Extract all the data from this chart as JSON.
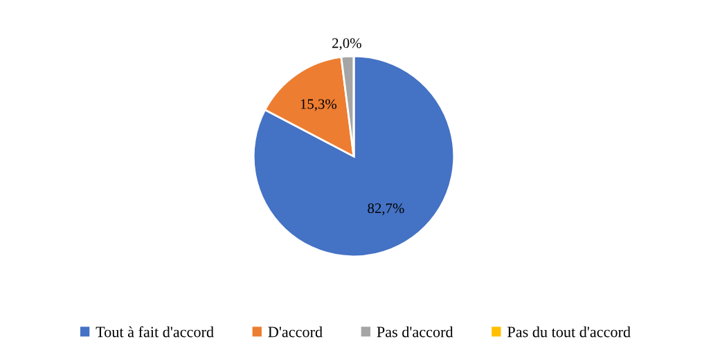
{
  "chart_data": {
    "type": "pie",
    "categories": [
      "Tout à fait d'accord",
      "D'accord",
      "Pas d'accord",
      "Pas du tout d'accord"
    ],
    "values": [
      82.7,
      15.3,
      2.0,
      0
    ],
    "colors": [
      "#4472c4",
      "#ed7d31",
      "#a5a5a5",
      "#ffc000"
    ],
    "value_labels": [
      "82,7%",
      "15,3%",
      "2,0%",
      null
    ],
    "legend": "bottom"
  }
}
